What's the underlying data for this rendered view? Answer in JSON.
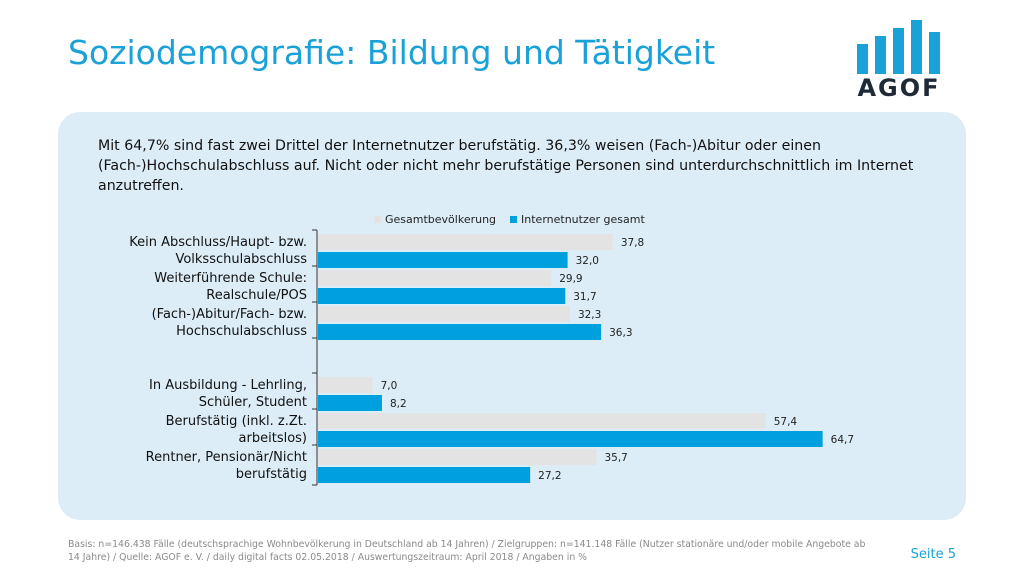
{
  "title": "Soziodemografie: Bildung und Tätigkeit",
  "logo_text": "AGOF",
  "summary": "Mit 64,7% sind fast zwei Drittel der Internetnutzer berufstätig. 36,3% weisen (Fach-)Abitur oder einen (Fach-)Hochschulabschluss auf. Nicht oder nicht mehr berufstätige Personen sind unterdurchschnittlich im Internet anzutreffen.",
  "footer": "Basis: n=146.438 Fälle (deutschsprachige Wohnbevölkerung in Deutschland ab 14 Jahren) / Zielgruppen: n=141.148 Fälle (Nutzer stationäre und/oder mobile Angebote ab 14 Jahre) / Quelle: AGOF e. V. / daily digital facts 02.05.2018 / Auswertungszeitraum: April 2018 / Angaben in %",
  "page_label": "Seite 5",
  "colors": {
    "accent": "#1aa2d8",
    "series_gesamt": "#e3e3e3",
    "series_internet": "#00a0de",
    "panel": "#dcedf8"
  },
  "chart_data": {
    "type": "bar",
    "orientation": "horizontal",
    "categories": [
      [
        "Kein Abschluss/Haupt- bzw.",
        "Volksschulabschluss"
      ],
      [
        "Weiterführende Schule:",
        "Realschule/POS"
      ],
      [
        "(Fach-)Abitur/Fach- bzw.",
        "Hochschulabschluss"
      ],
      [
        "In Ausbildung - Lehrling,",
        "Schüler, Student"
      ],
      [
        "Berufstätig (inkl. z.Zt.",
        "arbeitslos)"
      ],
      [
        "Rentner, Pensionär/Nicht",
        "berufstätig"
      ]
    ],
    "groups": [
      [
        0,
        1,
        2
      ],
      [
        3,
        4,
        5
      ]
    ],
    "series": [
      {
        "name": "Gesamtbevölkerung",
        "values": [
          37.8,
          29.9,
          32.3,
          7.0,
          57.4,
          35.7
        ],
        "labels": [
          "37,8",
          "29,9",
          "32,3",
          "7,0",
          "57,4",
          "35,7"
        ]
      },
      {
        "name": "Internetnutzer gesamt",
        "values": [
          32.0,
          31.7,
          36.3,
          8.2,
          64.7,
          27.2
        ],
        "labels": [
          "32,0",
          "31,7",
          "36,3",
          "8,2",
          "64,7",
          "27,2"
        ]
      }
    ],
    "legend_position": "top"
  }
}
